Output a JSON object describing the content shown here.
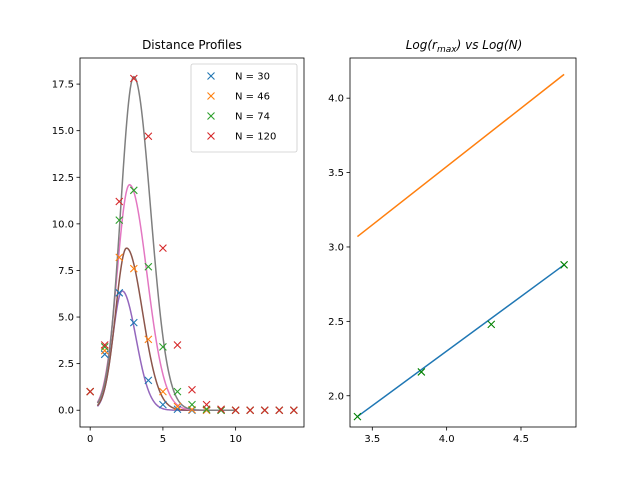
{
  "chart_data": [
    {
      "type": "line",
      "title": "Distance Profiles",
      "xlim": [
        -0.7,
        14.7
      ],
      "ylim": [
        -0.9,
        18.9
      ],
      "xticks": [
        "0",
        "5",
        "10"
      ],
      "yticks": [
        "0.0",
        "2.5",
        "5.0",
        "7.5",
        "10.0",
        "12.5",
        "15.0",
        "17.5"
      ],
      "legend_position": "top-right",
      "series": [
        {
          "name": "N = 30",
          "color": "#1f77b4",
          "marker": "x",
          "points": [
            [
              0,
              1.0
            ],
            [
              1,
              3.0
            ],
            [
              2,
              6.3
            ],
            [
              3,
              4.7
            ],
            [
              4,
              1.6
            ],
            [
              5,
              0.3
            ],
            [
              6,
              0.05
            ],
            [
              7,
              0.0
            ],
            [
              8,
              0.0
            ],
            [
              9,
              0.0
            ],
            [
              10,
              0.0
            ],
            [
              11,
              0.0
            ],
            [
              12,
              0.0
            ],
            [
              13,
              0.0
            ],
            [
              14,
              0.0
            ]
          ],
          "fit": {
            "color": "#9467bd",
            "peak_x": 2.2,
            "peak_y": 6.4,
            "sigma_left": 0.65,
            "sigma_right": 0.95,
            "x_start": 0.5,
            "x_end": 9.0
          }
        },
        {
          "name": "N = 46",
          "color": "#ff7f0e",
          "marker": "x",
          "points": [
            [
              0,
              1.0
            ],
            [
              1,
              3.2
            ],
            [
              2,
              8.2
            ],
            [
              3,
              7.6
            ],
            [
              4,
              3.8
            ],
            [
              5,
              1.0
            ],
            [
              6,
              0.2
            ],
            [
              7,
              0.03
            ],
            [
              8,
              0.0
            ],
            [
              9,
              0.0
            ],
            [
              10,
              0.0
            ],
            [
              11,
              0.0
            ],
            [
              12,
              0.0
            ],
            [
              13,
              0.0
            ],
            [
              14,
              0.0
            ]
          ],
          "fit": {
            "color": "#8c564b",
            "peak_x": 2.5,
            "peak_y": 8.7,
            "sigma_left": 0.75,
            "sigma_right": 1.1,
            "x_start": 0.5,
            "x_end": 9.0
          }
        },
        {
          "name": "N = 74",
          "color": "#2ca02c",
          "marker": "x",
          "points": [
            [
              0,
              1.0
            ],
            [
              1,
              3.4
            ],
            [
              2,
              10.2
            ],
            [
              3,
              11.8
            ],
            [
              4,
              7.7
            ],
            [
              5,
              3.4
            ],
            [
              6,
              1.0
            ],
            [
              7,
              0.3
            ],
            [
              8,
              0.05
            ],
            [
              9,
              0.0
            ],
            [
              10,
              0.0
            ],
            [
              11,
              0.0
            ],
            [
              12,
              0.0
            ],
            [
              13,
              0.0
            ],
            [
              14,
              0.0
            ]
          ],
          "fit": {
            "color": "#e377c2",
            "peak_x": 2.7,
            "peak_y": 12.1,
            "sigma_left": 0.85,
            "sigma_right": 1.2,
            "x_start": 0.5,
            "x_end": 10.0
          }
        },
        {
          "name": "N = 120",
          "color": "#d62728",
          "marker": "x",
          "points": [
            [
              0,
              1.0
            ],
            [
              1,
              3.5
            ],
            [
              2,
              11.2
            ],
            [
              3,
              17.8
            ],
            [
              4,
              14.7
            ],
            [
              5,
              8.7
            ],
            [
              6,
              3.5
            ],
            [
              7,
              1.1
            ],
            [
              8,
              0.3
            ],
            [
              9,
              0.05
            ],
            [
              10,
              0.0
            ],
            [
              11,
              0.0
            ],
            [
              12,
              0.0
            ],
            [
              13,
              0.0
            ],
            [
              14,
              0.0
            ]
          ],
          "fit": {
            "color": "#7f7f7f",
            "peak_x": 3.0,
            "peak_y": 17.9,
            "sigma_left": 0.9,
            "sigma_right": 1.15,
            "x_start": 0.5,
            "x_end": 10.0
          }
        }
      ]
    },
    {
      "type": "line",
      "title_base": "Log(r",
      "title_sub": "max",
      "title_rest": ") vs Log(N)",
      "xlim": [
        3.35,
        4.87
      ],
      "ylim": [
        1.79,
        4.27
      ],
      "xticks": [
        "3.5",
        "4.0",
        "4.5"
      ],
      "yticks": [
        "2.0",
        "2.5",
        "3.0",
        "3.5",
        "4.0"
      ],
      "series": [
        {
          "name": "",
          "color": "#1f77b4",
          "style": "line",
          "x": [
            3.4,
            4.79
          ],
          "y": [
            1.86,
            2.88
          ]
        },
        {
          "name": "",
          "color": "#ff7f0e",
          "style": "line",
          "x": [
            3.4,
            4.79
          ],
          "y": [
            3.07,
            4.16
          ]
        },
        {
          "name": "",
          "color": "#008000",
          "style": "marker",
          "x": [
            3.4,
            3.83,
            4.3,
            4.79
          ],
          "y": [
            1.86,
            2.16,
            2.48,
            2.88
          ]
        }
      ]
    }
  ]
}
